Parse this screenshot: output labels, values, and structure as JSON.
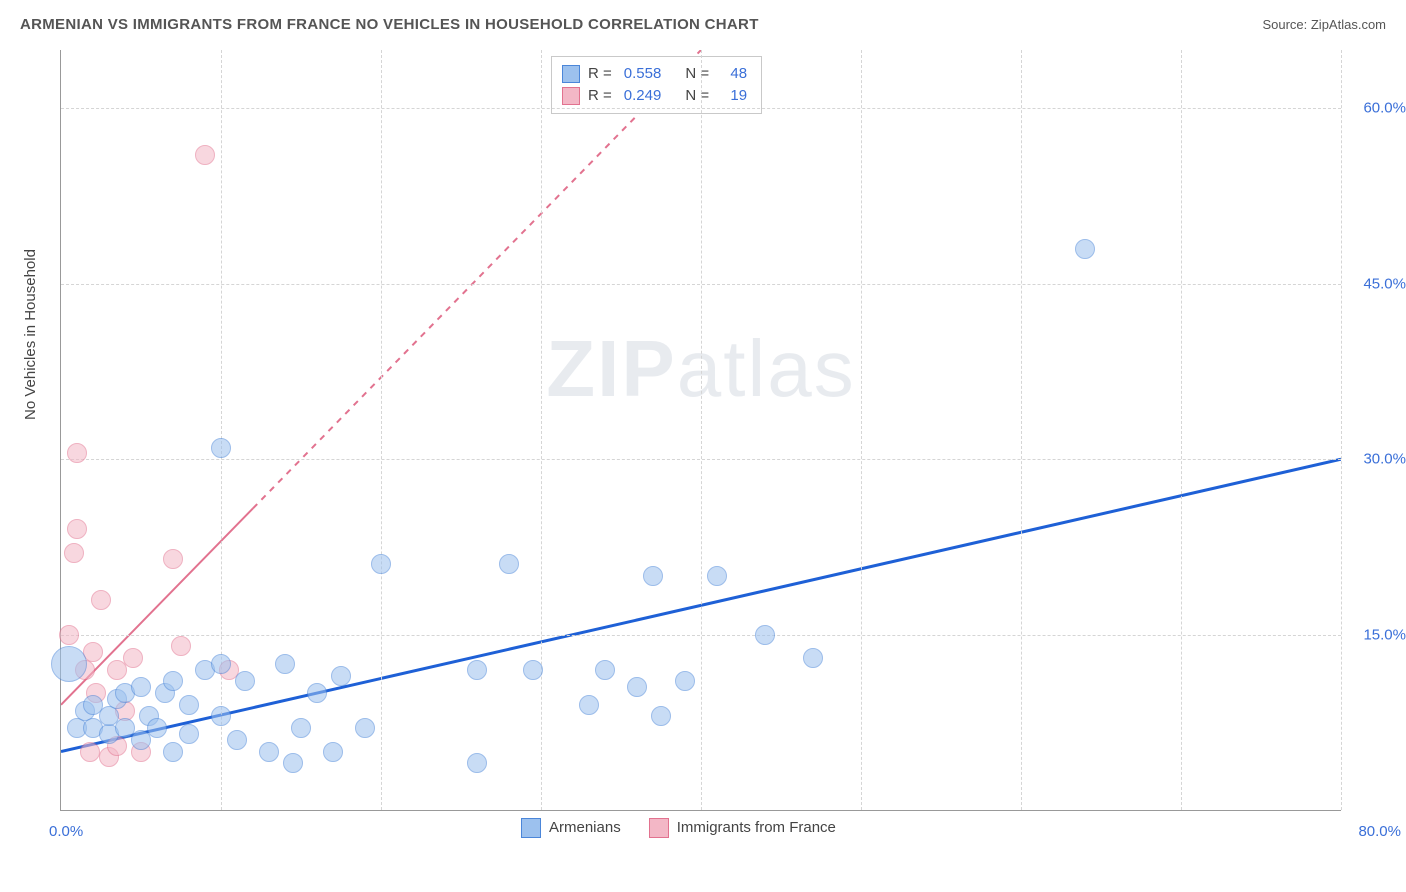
{
  "header": {
    "title": "ARMENIAN VS IMMIGRANTS FROM FRANCE NO VEHICLES IN HOUSEHOLD CORRELATION CHART",
    "source": "Source: ZipAtlas.com"
  },
  "yaxis": {
    "title": "No Vehicles in Household"
  },
  "watermark": {
    "a": "ZIP",
    "b": "atlas"
  },
  "chart": {
    "type": "scatter",
    "xlim": [
      0,
      80
    ],
    "ylim": [
      0,
      65
    ],
    "xtick_labels": {
      "left": "0.0%",
      "right": "80.0%"
    },
    "xgrid_at": [
      10,
      20,
      30,
      40,
      50,
      60,
      70,
      80
    ],
    "ygrid": [
      {
        "v": 15,
        "label": "15.0%"
      },
      {
        "v": 30,
        "label": "30.0%"
      },
      {
        "v": 45,
        "label": "45.0%"
      },
      {
        "v": 60,
        "label": "60.0%"
      }
    ],
    "background_color": "#ffffff",
    "grid_color": "#d5d5d5"
  },
  "series": {
    "blue": {
      "label": "Armenians",
      "fill": "#9cc1ee",
      "stroke": "#4b86d9",
      "fill_opacity": 0.55,
      "marker_r": 9,
      "R": "0.558",
      "N": "48",
      "trend": {
        "x1": 0,
        "y1": 5.0,
        "x2": 80,
        "y2": 30.0,
        "dash_after_x": null,
        "color": "#1e60d6",
        "width": 3
      },
      "points": [
        {
          "x": 0.5,
          "y": 12.5,
          "r": 17
        },
        {
          "x": 1,
          "y": 7
        },
        {
          "x": 1.5,
          "y": 8.5
        },
        {
          "x": 2,
          "y": 7
        },
        {
          "x": 2,
          "y": 9
        },
        {
          "x": 3,
          "y": 6.5
        },
        {
          "x": 3,
          "y": 8
        },
        {
          "x": 3.5,
          "y": 9.5
        },
        {
          "x": 4,
          "y": 7
        },
        {
          "x": 4,
          "y": 10
        },
        {
          "x": 5,
          "y": 6
        },
        {
          "x": 5,
          "y": 10.5
        },
        {
          "x": 5.5,
          "y": 8
        },
        {
          "x": 6,
          "y": 7
        },
        {
          "x": 6.5,
          "y": 10
        },
        {
          "x": 7,
          "y": 5
        },
        {
          "x": 7,
          "y": 11
        },
        {
          "x": 8,
          "y": 6.5
        },
        {
          "x": 8,
          "y": 9
        },
        {
          "x": 9,
          "y": 12
        },
        {
          "x": 10,
          "y": 8
        },
        {
          "x": 10,
          "y": 12.5
        },
        {
          "x": 10,
          "y": 31
        },
        {
          "x": 11,
          "y": 6
        },
        {
          "x": 11.5,
          "y": 11
        },
        {
          "x": 13,
          "y": 5
        },
        {
          "x": 14,
          "y": 12.5
        },
        {
          "x": 14.5,
          "y": 4
        },
        {
          "x": 15,
          "y": 7
        },
        {
          "x": 16,
          "y": 10
        },
        {
          "x": 17,
          "y": 5
        },
        {
          "x": 17.5,
          "y": 11.5
        },
        {
          "x": 19,
          "y": 7
        },
        {
          "x": 20,
          "y": 21
        },
        {
          "x": 26,
          "y": 4
        },
        {
          "x": 26,
          "y": 12
        },
        {
          "x": 28,
          "y": 21
        },
        {
          "x": 29.5,
          "y": 12
        },
        {
          "x": 33,
          "y": 9
        },
        {
          "x": 34,
          "y": 12
        },
        {
          "x": 37,
          "y": 20
        },
        {
          "x": 36,
          "y": 10.5
        },
        {
          "x": 37.5,
          "y": 8
        },
        {
          "x": 39,
          "y": 11
        },
        {
          "x": 41,
          "y": 20
        },
        {
          "x": 44,
          "y": 15
        },
        {
          "x": 47,
          "y": 13
        },
        {
          "x": 64,
          "y": 48
        }
      ]
    },
    "pink": {
      "label": "Immigrants from France",
      "fill": "#f3b7c6",
      "stroke": "#e2728f",
      "fill_opacity": 0.55,
      "marker_r": 9,
      "R": "0.249",
      "N": "19",
      "trend": {
        "x1": 0,
        "y1": 9.0,
        "x2": 40,
        "y2": 65.0,
        "dash_after_x": 12,
        "color": "#e2728f",
        "width": 2
      },
      "points": [
        {
          "x": 0.5,
          "y": 15
        },
        {
          "x": 0.8,
          "y": 22
        },
        {
          "x": 1,
          "y": 24
        },
        {
          "x": 1,
          "y": 30.5
        },
        {
          "x": 1.5,
          "y": 12
        },
        {
          "x": 1.8,
          "y": 5
        },
        {
          "x": 2,
          "y": 13.5
        },
        {
          "x": 2.2,
          "y": 10
        },
        {
          "x": 2.5,
          "y": 18
        },
        {
          "x": 3,
          "y": 4.5
        },
        {
          "x": 3.5,
          "y": 12
        },
        {
          "x": 3.5,
          "y": 5.5
        },
        {
          "x": 4,
          "y": 8.5
        },
        {
          "x": 4.5,
          "y": 13
        },
        {
          "x": 5,
          "y": 5
        },
        {
          "x": 7,
          "y": 21.5
        },
        {
          "x": 7.5,
          "y": 14
        },
        {
          "x": 9,
          "y": 56
        },
        {
          "x": 10.5,
          "y": 12
        }
      ]
    }
  },
  "legend_top": {
    "r_label": "R =",
    "n_label": "N ="
  }
}
